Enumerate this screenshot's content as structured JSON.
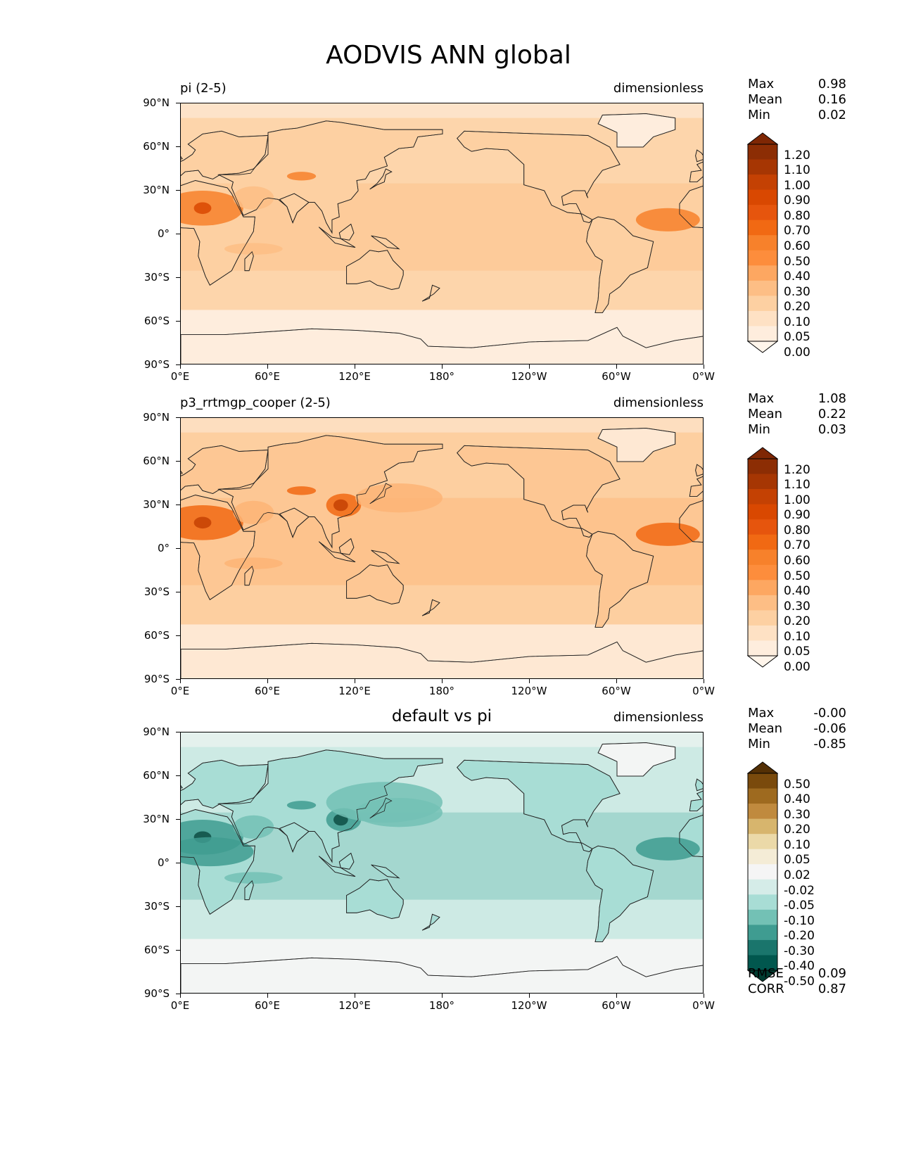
{
  "title": "AODVIS ANN global",
  "axes": {
    "lat_labels": [
      "90°N",
      "60°N",
      "30°N",
      "0°",
      "30°S",
      "60°S",
      "90°S"
    ],
    "lon_labels": [
      "0°E",
      "60°E",
      "120°E",
      "180°",
      "120°W",
      "60°W",
      "0°W"
    ]
  },
  "panels": [
    {
      "title": "pi (2-5)",
      "title_style": "left",
      "units": "dimensionless",
      "stats": [
        {
          "k": "Max",
          "v": "0.98"
        },
        {
          "k": "Mean",
          "v": "0.16"
        },
        {
          "k": "Min",
          "v": "0.02"
        }
      ],
      "colorbar_labels": [
        "1.20",
        "1.10",
        "1.00",
        "0.90",
        "0.80",
        "0.70",
        "0.60",
        "0.50",
        "0.40",
        "0.30",
        "0.20",
        "0.10",
        "0.05",
        "0.00"
      ],
      "colorbar_colors": [
        "#7f2704",
        "#8c2d04",
        "#a63603",
        "#c44103",
        "#d94801",
        "#e6550d",
        "#f16913",
        "#f7812b",
        "#fd8d3c",
        "#fda761",
        "#fdbe85",
        "#fdd0a2",
        "#fee1c4",
        "#feeddd",
        "#fff5eb"
      ],
      "colors": {
        "ocean": "#fdd5ab",
        "land": "#fdd0a2",
        "polar": "#feeddd",
        "high": "#fdbe85",
        "dust": "#f7812b",
        "dust_core": "#d94801"
      }
    },
    {
      "title": "p3_rrtmgp_cooper (2-5)",
      "title_style": "left",
      "units": "dimensionless",
      "stats": [
        {
          "k": "Max",
          "v": "1.08"
        },
        {
          "k": "Mean",
          "v": "0.22"
        },
        {
          "k": "Min",
          "v": "0.03"
        }
      ],
      "colorbar_labels": [
        "1.20",
        "1.10",
        "1.00",
        "0.90",
        "0.80",
        "0.70",
        "0.60",
        "0.50",
        "0.40",
        "0.30",
        "0.20",
        "0.10",
        "0.05",
        "0.00"
      ],
      "colorbar_colors": [
        "#7f2704",
        "#8c2d04",
        "#a63603",
        "#c44103",
        "#d94801",
        "#e6550d",
        "#f16913",
        "#f7812b",
        "#fd8d3c",
        "#fda761",
        "#fdbe85",
        "#fdd0a2",
        "#fee1c4",
        "#feeddd",
        "#fff5eb"
      ],
      "colors": {
        "ocean": "#fdcfa0",
        "land": "#fdc794",
        "polar": "#fee8d3",
        "high": "#fdb476",
        "dust": "#f16913",
        "dust_core": "#c44103"
      }
    },
    {
      "title": "default vs pi",
      "title_style": "center",
      "units": "dimensionless",
      "stats": [
        {
          "k": "Max",
          "v": "-0.00"
        },
        {
          "k": "Mean",
          "v": "-0.06"
        },
        {
          "k": "Min",
          "v": "-0.85"
        }
      ],
      "colorbar_labels": [
        "0.50",
        "0.40",
        "0.30",
        "0.20",
        "0.10",
        "0.05",
        "0.02",
        "-0.02",
        "-0.05",
        "-0.10",
        "-0.20",
        "-0.30",
        "-0.40",
        "-0.50"
      ],
      "colorbar_colors": [
        "#543005",
        "#7a4a0c",
        "#9e6a1f",
        "#c08a3e",
        "#d7b56d",
        "#ebd9a8",
        "#f4ecd6",
        "#f5f5f5",
        "#d5ece8",
        "#a8ddd5",
        "#73c1b5",
        "#3f9c91",
        "#1a756c",
        "#01574e",
        "#003c30"
      ],
      "colors": {
        "ocean": "#cdeae4",
        "land": "#a8ddd5",
        "polar": "#f3f5f4",
        "high": "#73c1b5",
        "dust": "#3f9c91",
        "dust_core": "#0d4d44"
      },
      "footer": [
        {
          "k": "RMSE",
          "v": "0.09"
        },
        {
          "k": "CORR",
          "v": "0.87"
        }
      ]
    }
  ]
}
